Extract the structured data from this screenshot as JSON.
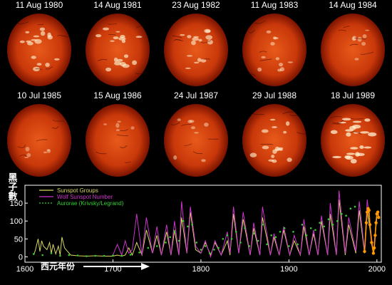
{
  "sun_images": [
    {
      "date": "11 Aug 1980",
      "activity": 0.55
    },
    {
      "date": "14 Aug 1981",
      "activity": 0.6
    },
    {
      "date": "23 Aug 1982",
      "activity": 0.5
    },
    {
      "date": "11 Aug 1983",
      "activity": 0.3
    },
    {
      "date": "14 Aug 1984",
      "activity": 0.15
    },
    {
      "date": "10 Jul 1985",
      "activity": 0.1
    },
    {
      "date": "15 Aug 1986",
      "activity": 0.05
    },
    {
      "date": "24 Jul 1987",
      "activity": 0.2
    },
    {
      "date": "29 Jul 1988",
      "activity": 0.55
    },
    {
      "date": "18 Jul 1989",
      "activity": 0.8
    }
  ],
  "colors": {
    "sun_outer": "#7a1300",
    "sun_mid": "#c8380a",
    "sun_inner": "#e85a1a",
    "sun_plage": "#fff2d0",
    "sunspot_groups": "#d8d860",
    "wolf_number": "#cc33cc",
    "aurorae": "#33cc33",
    "recent": "#ff9900"
  },
  "chart_data": {
    "type": "line",
    "ylabel": "黑子數",
    "x_axis_label": "西元年份",
    "xlim": [
      1600,
      2005
    ],
    "ylim": [
      -15,
      200
    ],
    "xticks": [
      1600,
      1700,
      1800,
      1900,
      2000
    ],
    "yticks": [
      0,
      50,
      100,
      150
    ],
    "legend_position": "top-left",
    "series": [
      {
        "name": "Sunspot Groups",
        "color": "#d8d860",
        "style": "line",
        "x": [
          1610,
          1612,
          1615,
          1617,
          1619,
          1621,
          1625,
          1628,
          1630,
          1632,
          1635,
          1638,
          1640,
          1642,
          1645,
          1652,
          1660,
          1670,
          1680,
          1690,
          1700,
          1705,
          1710,
          1714,
          1718,
          1722,
          1727,
          1733,
          1738,
          1745,
          1750,
          1755,
          1761,
          1766,
          1770,
          1775,
          1778,
          1784,
          1788,
          1794,
          1800,
          1805,
          1811,
          1816,
          1823,
          1830,
          1833,
          1837,
          1843,
          1848,
          1856,
          1860,
          1867,
          1870,
          1879,
          1883,
          1889,
          1894,
          1901,
          1906,
          1913,
          1917,
          1923,
          1928,
          1933,
          1937,
          1944,
          1947,
          1954,
          1957,
          1964,
          1968,
          1976,
          1980,
          1986,
          1989,
          1996,
          2000
        ],
        "y": [
          5,
          20,
          50,
          15,
          45,
          30,
          20,
          40,
          10,
          35,
          8,
          30,
          5,
          55,
          25,
          5,
          3,
          2,
          3,
          2,
          2,
          5,
          2,
          5,
          25,
          5,
          40,
          5,
          75,
          10,
          60,
          5,
          70,
          5,
          75,
          5,
          110,
          10,
          125,
          20,
          10,
          40,
          5,
          40,
          5,
          45,
          5,
          120,
          10,
          105,
          5,
          80,
          5,
          110,
          5,
          55,
          5,
          75,
          5,
          45,
          5,
          85,
          5,
          65,
          5,
          100,
          5,
          120,
          5,
          160,
          5,
          90,
          10,
          130,
          10,
          130,
          10,
          110
        ]
      },
      {
        "name": "Wolf Sunspot Number",
        "color": "#cc33cc",
        "style": "line",
        "x": [
          1700,
          1705,
          1710,
          1714,
          1718,
          1722,
          1727,
          1733,
          1738,
          1745,
          1750,
          1755,
          1761,
          1766,
          1770,
          1775,
          1778,
          1784,
          1788,
          1794,
          1800,
          1805,
          1811,
          1816,
          1823,
          1830,
          1833,
          1837,
          1843,
          1848,
          1856,
          1860,
          1867,
          1870,
          1879,
          1883,
          1889,
          1894,
          1901,
          1906,
          1913,
          1917,
          1923,
          1928,
          1933,
          1937,
          1944,
          1947,
          1954,
          1957,
          1964,
          1968,
          1976,
          1980,
          1986,
          1989,
          1996,
          2000
        ],
        "y": [
          5,
          35,
          5,
          45,
          10,
          20,
          120,
          5,
          110,
          10,
          85,
          5,
          90,
          5,
          100,
          5,
          155,
          10,
          140,
          30,
          10,
          45,
          0,
          45,
          5,
          70,
          10,
          140,
          10,
          125,
          5,
          95,
          5,
          140,
          5,
          65,
          5,
          85,
          5,
          60,
          5,
          105,
          5,
          75,
          5,
          115,
          5,
          150,
          5,
          185,
          10,
          110,
          15,
          155,
          15,
          160,
          10,
          120
        ]
      },
      {
        "name": "Aurorae (Krivsky/Legrand)",
        "color": "#33cc33",
        "style": "dots",
        "x": [
          1610,
          1620,
          1630,
          1640,
          1650,
          1660,
          1670,
          1680,
          1690,
          1700,
          1710,
          1720,
          1730,
          1740,
          1750,
          1760,
          1765,
          1770,
          1775,
          1780,
          1785,
          1790,
          1795,
          1800,
          1805,
          1810,
          1815,
          1820,
          1825,
          1830,
          1835,
          1840,
          1845,
          1850,
          1855,
          1860,
          1865,
          1870,
          1875,
          1880,
          1885,
          1890,
          1895,
          1900,
          1905,
          1910,
          1915,
          1920,
          1925,
          1930,
          1935,
          1940,
          1945,
          1950,
          1955,
          1960,
          1965,
          1970,
          1975
        ],
        "y": [
          8,
          5,
          10,
          3,
          5,
          4,
          2,
          3,
          3,
          4,
          3,
          6,
          12,
          25,
          30,
          40,
          55,
          70,
          45,
          100,
          85,
          90,
          40,
          20,
          30,
          10,
          20,
          25,
          50,
          60,
          50,
          70,
          40,
          80,
          30,
          65,
          45,
          90,
          35,
          60,
          55,
          70,
          80,
          30,
          70,
          35,
          90,
          60,
          80,
          75,
          95,
          85,
          105,
          90,
          100,
          120,
          115,
          135,
          140
        ]
      },
      {
        "name": "",
        "color": "#ff9900",
        "style": "line-dots",
        "x": [
          1986,
          1988,
          1989,
          1990,
          1991,
          1992,
          1994,
          1996,
          1997,
          1998,
          1999,
          2000,
          2001,
          2002
        ],
        "y": [
          15,
          95,
          125,
          135,
          130,
          90,
          40,
          10,
          25,
          60,
          95,
          120,
          125,
          110
        ]
      }
    ]
  }
}
